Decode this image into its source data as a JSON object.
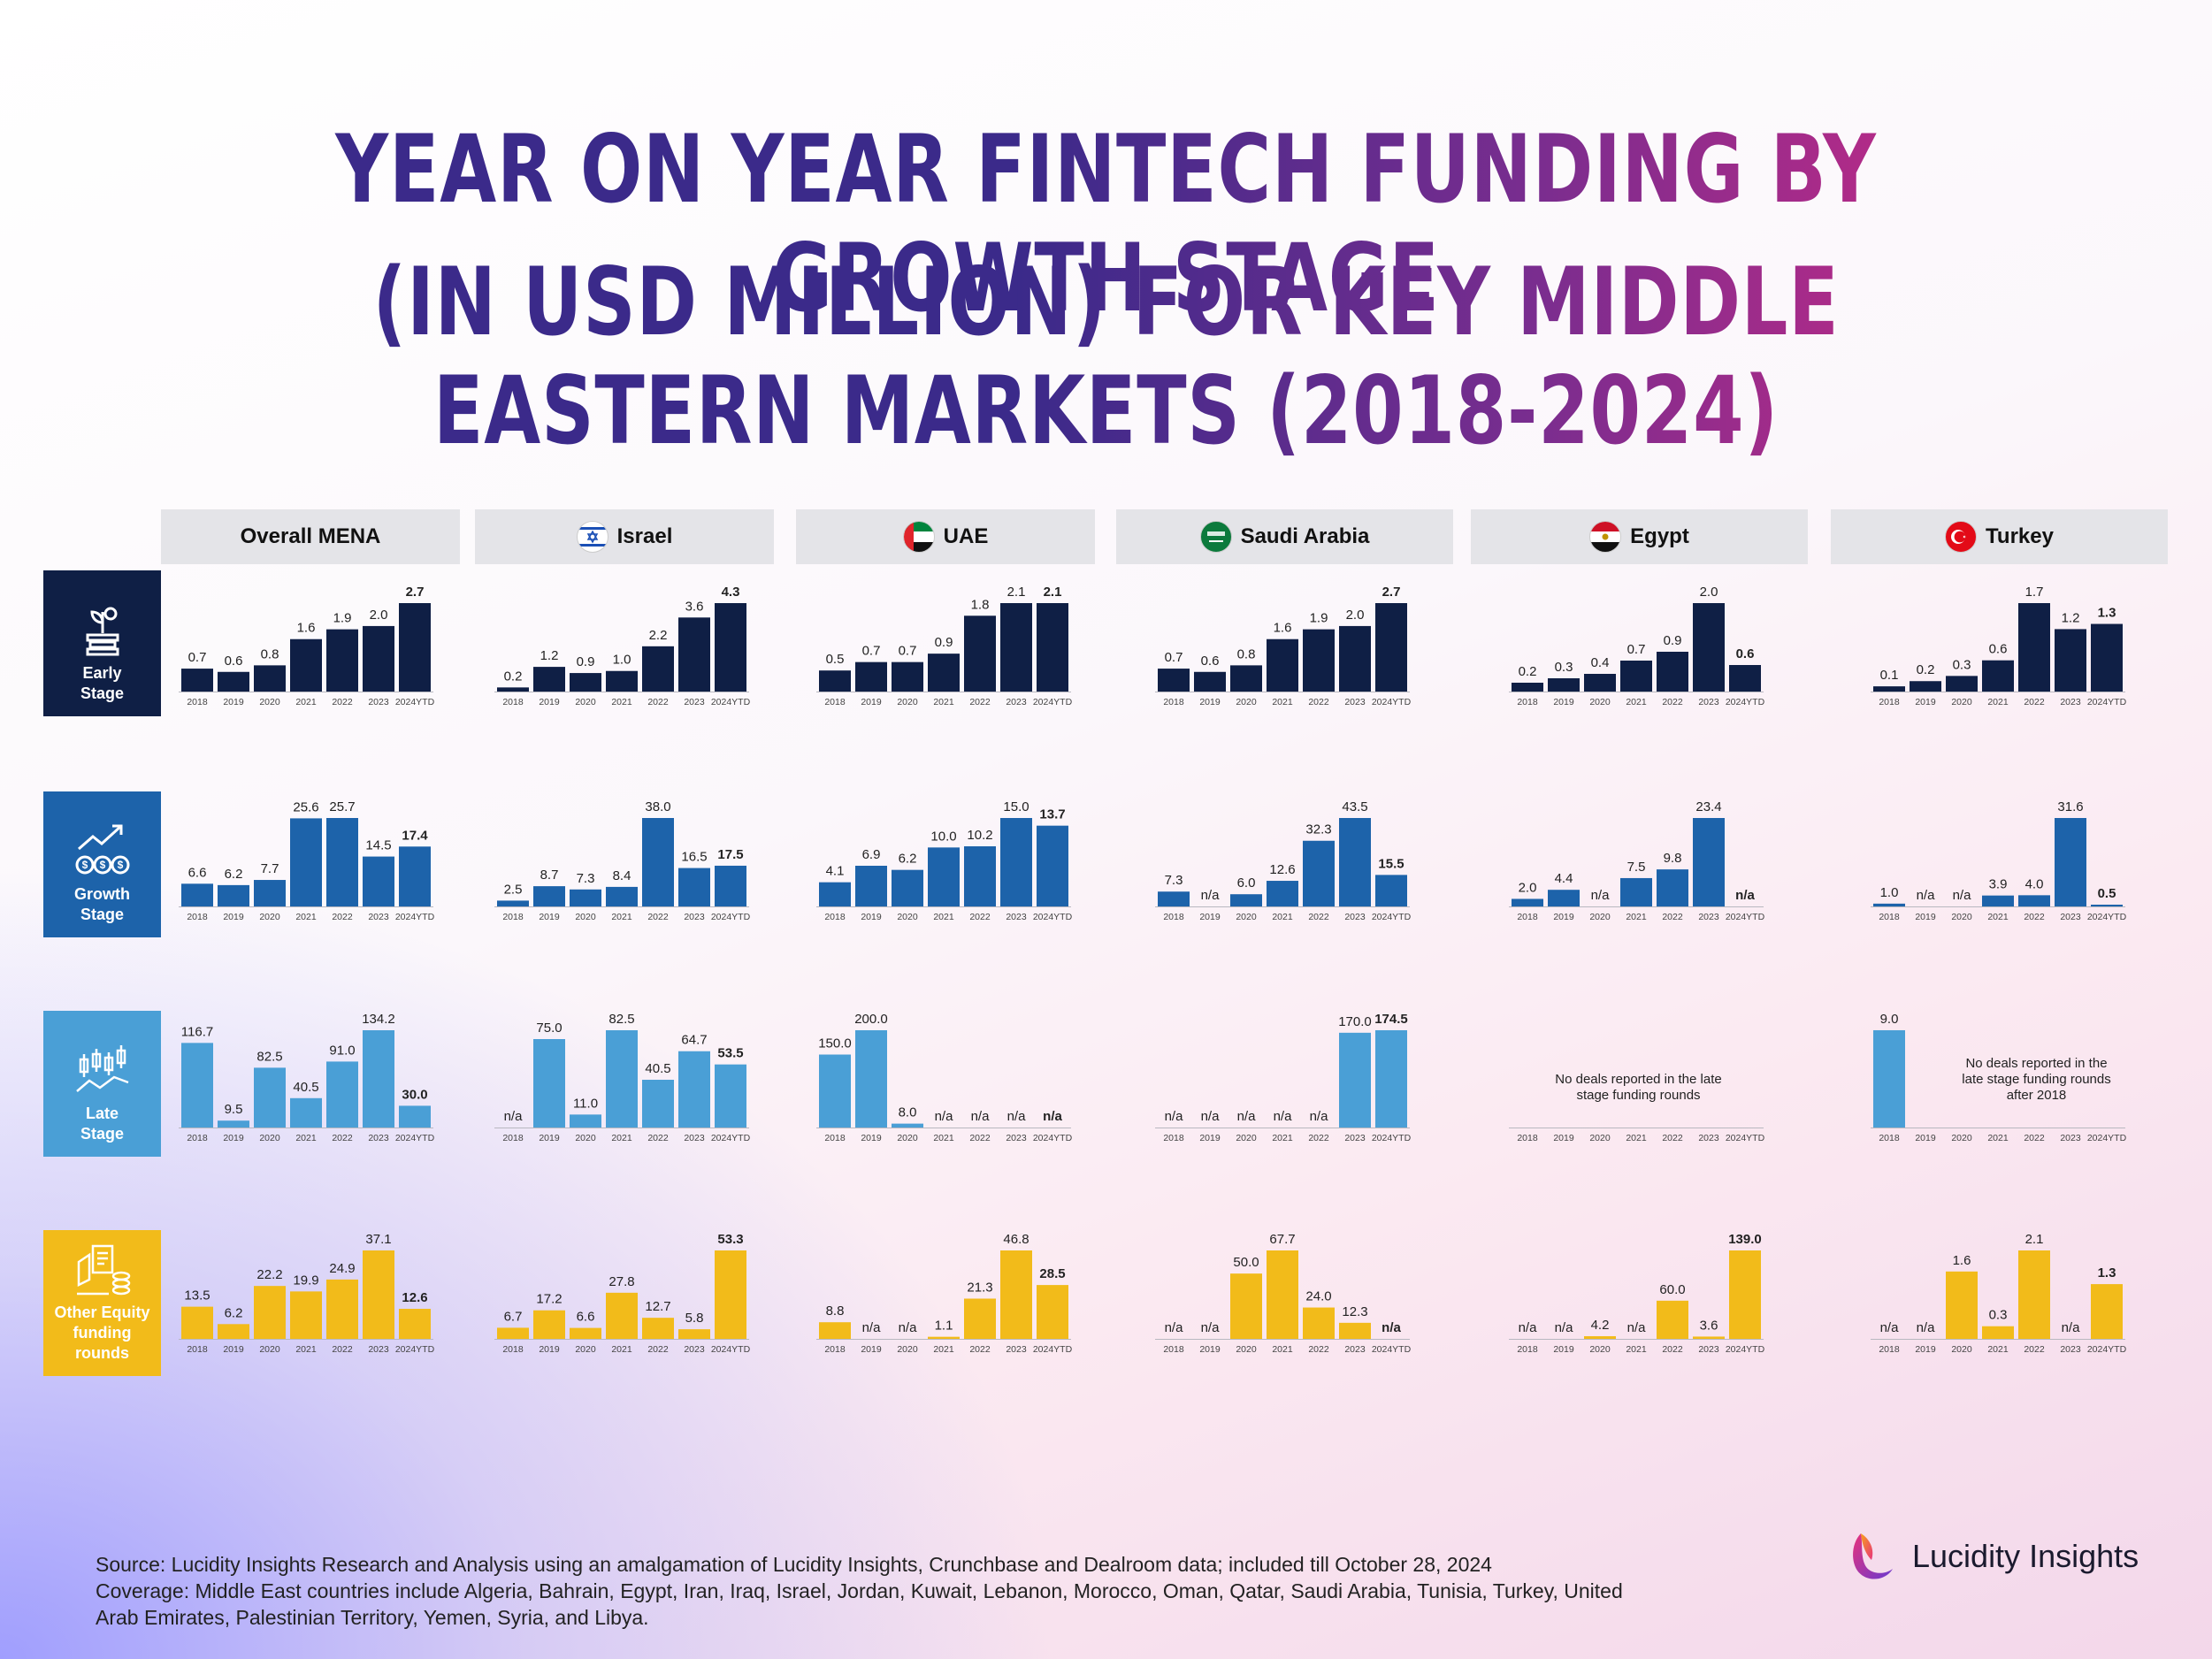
{
  "title": {
    "line1": "YEAR ON YEAR FINTECH FUNDING BY GROWTH STAGE",
    "line2": "(IN USD MILLION) FOR KEY MIDDLE EASTERN MARKETS (2018-2024)"
  },
  "columns": [
    {
      "name": "Overall MENA",
      "flag": ""
    },
    {
      "name": "Israel",
      "flag": "israel-flag-icon"
    },
    {
      "name": "UAE",
      "flag": "uae-flag-icon"
    },
    {
      "name": "Saudi Arabia",
      "flag": "saudi-flag-icon"
    },
    {
      "name": "Egypt",
      "flag": "egypt-flag-icon"
    },
    {
      "name": "Turkey",
      "flag": "turkey-flag-icon"
    }
  ],
  "rows": [
    {
      "label": "Early Stage",
      "color": "#0f1f45",
      "icon": "plant-growth-icon"
    },
    {
      "label": "Growth Stage",
      "color": "#1d63aa",
      "icon": "growth-coins-icon"
    },
    {
      "label": "Late Stage",
      "color": "#4a9fd6",
      "icon": "candlestick-chart-icon"
    },
    {
      "label": "Other Equity funding rounds",
      "color": "#f2bb1a",
      "icon": "equity-documents-icon"
    }
  ],
  "chart_data": {
    "type": "bar",
    "categories": [
      "2018",
      "2019",
      "2020",
      "2021",
      "2022",
      "2023",
      "2024YTD"
    ],
    "panels": [
      [
        {
          "values": [
            0.7,
            0.6,
            0.8,
            1.6,
            1.9,
            2.0,
            2.7
          ],
          "labels": [
            "0.7",
            "0.6",
            "0.8",
            "1.6",
            "1.9",
            "2.0",
            "2.7"
          ]
        },
        {
          "values": [
            6.6,
            6.2,
            7.7,
            25.6,
            25.7,
            14.5,
            17.4
          ],
          "labels": [
            "6.6",
            "6.2",
            "7.7",
            "25.6",
            "25.7",
            "14.5",
            "17.4"
          ]
        },
        {
          "values": [
            116.7,
            9.5,
            82.5,
            40.5,
            91.0,
            134.2,
            30.0
          ],
          "labels": [
            "116.7",
            "9.5",
            "82.5",
            "40.5",
            "91.0",
            "134.2",
            "30.0"
          ]
        },
        {
          "values": [
            13.5,
            6.2,
            22.2,
            19.9,
            24.9,
            37.1,
            12.6
          ],
          "labels": [
            "13.5",
            "6.2",
            "22.2",
            "19.9",
            "24.9",
            "37.1",
            "12.6"
          ]
        }
      ],
      [
        {
          "values": [
            0.2,
            1.2,
            0.9,
            1.0,
            2.2,
            3.6,
            4.3
          ],
          "labels": [
            "0.2",
            "1.2",
            "0.9",
            "1.0",
            "2.2",
            "3.6",
            "4.3"
          ]
        },
        {
          "values": [
            2.5,
            8.7,
            7.3,
            8.4,
            38.0,
            16.5,
            17.5
          ],
          "labels": [
            "2.5",
            "8.7",
            "7.3",
            "8.4",
            "38.0",
            "16.5",
            "17.5"
          ]
        },
        {
          "values": [
            null,
            75.0,
            11.0,
            82.5,
            40.5,
            64.7,
            53.5
          ],
          "labels": [
            "n/a",
            "75.0",
            "11.0",
            "82.5",
            "40.5",
            "64.7",
            "53.5"
          ]
        },
        {
          "values": [
            6.7,
            17.2,
            6.6,
            27.8,
            12.7,
            5.8,
            53.3
          ],
          "labels": [
            "6.7",
            "17.2",
            "6.6",
            "27.8",
            "12.7",
            "5.8",
            "53.3"
          ]
        }
      ],
      [
        {
          "values": [
            0.5,
            0.7,
            0.7,
            0.9,
            1.8,
            2.1,
            2.1
          ],
          "labels": [
            "0.5",
            "0.7",
            "0.7",
            "0.9",
            "1.8",
            "2.1",
            "2.1"
          ]
        },
        {
          "values": [
            4.1,
            6.9,
            6.2,
            10.0,
            10.2,
            15.0,
            13.7
          ],
          "labels": [
            "4.1",
            "6.9",
            "6.2",
            "10.0",
            "10.2",
            "15.0",
            "13.7"
          ]
        },
        {
          "values": [
            150.0,
            200.0,
            8.0,
            null,
            null,
            null,
            null
          ],
          "labels": [
            "150.0",
            "200.0",
            "8.0",
            "n/a",
            "n/a",
            "n/a",
            "n/a"
          ]
        },
        {
          "values": [
            8.8,
            null,
            null,
            1.1,
            21.3,
            46.8,
            28.5
          ],
          "labels": [
            "8.8",
            "n/a",
            "n/a",
            "1.1",
            "21.3",
            "46.8",
            "28.5"
          ]
        }
      ],
      [
        {
          "values": [
            0.7,
            0.6,
            0.8,
            1.6,
            1.9,
            2.0,
            2.7
          ],
          "labels": [
            "0.7",
            "0.6",
            "0.8",
            "1.6",
            "1.9",
            "2.0",
            "2.7"
          ]
        },
        {
          "values": [
            7.3,
            null,
            6.0,
            12.6,
            32.3,
            43.5,
            15.5
          ],
          "labels": [
            "7.3",
            "n/a",
            "6.0",
            "12.6",
            "32.3",
            "43.5",
            "15.5"
          ]
        },
        {
          "values": [
            null,
            null,
            null,
            null,
            null,
            170.0,
            174.5
          ],
          "labels": [
            "n/a",
            "n/a",
            "n/a",
            "n/a",
            "n/a",
            "170.0",
            "174.5"
          ]
        },
        {
          "values": [
            null,
            null,
            50.0,
            67.7,
            24.0,
            12.3,
            null
          ],
          "labels": [
            "n/a",
            "n/a",
            "50.0",
            "67.7",
            "24.0",
            "12.3",
            "n/a"
          ]
        }
      ],
      [
        {
          "values": [
            0.2,
            0.3,
            0.4,
            0.7,
            0.9,
            2.0,
            0.6
          ],
          "labels": [
            "0.2",
            "0.3",
            "0.4",
            "0.7",
            "0.9",
            "2.0",
            "0.6"
          ]
        },
        {
          "values": [
            2.0,
            4.4,
            null,
            7.5,
            9.8,
            23.4,
            null
          ],
          "labels": [
            "2.0",
            "4.4",
            "n/a",
            "7.5",
            "9.8",
            "23.4",
            "n/a"
          ]
        },
        {
          "values": [
            null,
            null,
            null,
            null,
            null,
            null,
            null
          ],
          "labels": [
            "",
            "",
            "",
            "",
            "",
            "",
            ""
          ],
          "note": "No deals reported in the late stage funding rounds"
        },
        {
          "values": [
            null,
            null,
            4.2,
            null,
            60.0,
            3.6,
            139.0
          ],
          "labels": [
            "n/a",
            "n/a",
            "4.2",
            "n/a",
            "60.0",
            "3.6",
            "139.0"
          ]
        }
      ],
      [
        {
          "values": [
            0.1,
            0.2,
            0.3,
            0.6,
            1.7,
            1.2,
            1.3
          ],
          "labels": [
            "0.1",
            "0.2",
            "0.3",
            "0.6",
            "1.7",
            "1.2",
            "1.3"
          ]
        },
        {
          "values": [
            1.0,
            null,
            null,
            3.9,
            4.0,
            31.6,
            0.5
          ],
          "labels": [
            "1.0",
            "n/a",
            "n/a",
            "3.9",
            "4.0",
            "31.6",
            "0.5"
          ]
        },
        {
          "values": [
            9.0,
            null,
            null,
            null,
            null,
            null,
            null
          ],
          "labels": [
            "9.0",
            "",
            "",
            "",
            "",
            "",
            ""
          ],
          "note": "No deals reported in the late stage funding rounds after 2018"
        },
        {
          "values": [
            null,
            null,
            1.6,
            0.3,
            2.1,
            null,
            1.3
          ],
          "labels": [
            "n/a",
            "n/a",
            "1.6",
            "0.3",
            "2.1",
            "n/a",
            "1.3"
          ]
        }
      ]
    ]
  },
  "source": {
    "line1": "Source:  Lucidity Insights Research and Analysis using an amalgamation of Lucidity Insights, Crunchbase and Dealroom data; included till October 28, 2024",
    "line2": "Coverage: Middle East countries include Algeria, Bahrain, Egypt, Iran, Iraq, Israel, Jordan, Kuwait, Lebanon, Morocco, Oman, Qatar, Saudi Arabia, Tunisia, Turkey, United",
    "line3": "Arab Emirates, Palestinian Territory, Yemen, Syria, and Libya."
  },
  "logo": {
    "text": "Lucidity Insights"
  }
}
